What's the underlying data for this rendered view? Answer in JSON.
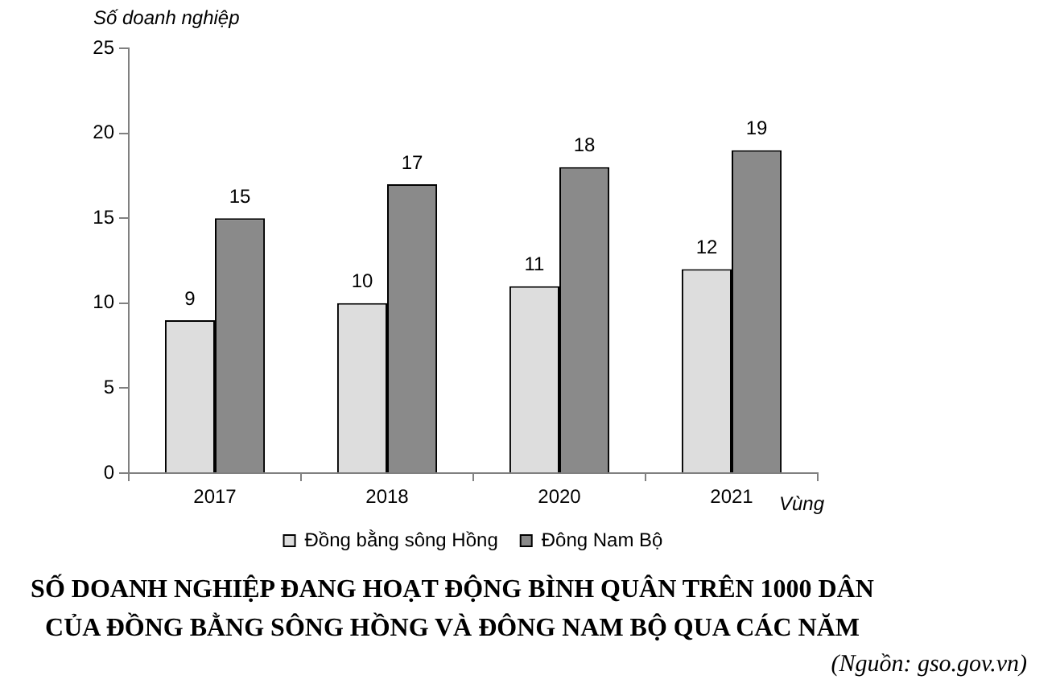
{
  "chart_data": {
    "type": "bar",
    "title": "SỐ DOANH NGHIỆP ĐANG HOẠT ĐỘNG BÌNH QUÂN TRÊN 1000 DÂN CỦA ĐỒNG BẰNG SÔNG HỒNG VÀ ĐÔNG NAM BỘ QUA CÁC NĂM",
    "ylabel": "Số doanh nghiệp",
    "xlabel": "Vùng",
    "annotations": [
      "(Nguồn: gso.gov.vn)"
    ],
    "categories": [
      "2017",
      "2018",
      "2020",
      "2021"
    ],
    "series": [
      {
        "name": "Đồng bằng sông Hồng",
        "color": "#dddddd",
        "values": [
          9,
          10,
          11,
          12
        ]
      },
      {
        "name": "Đông Nam Bộ",
        "color": "#8a8a8a",
        "values": [
          15,
          17,
          18,
          19
        ]
      }
    ],
    "ylim": [
      0,
      25
    ],
    "yticks": [
      0,
      5,
      10,
      15,
      20,
      25
    ],
    "data_labels": true,
    "legend": "bottom"
  }
}
